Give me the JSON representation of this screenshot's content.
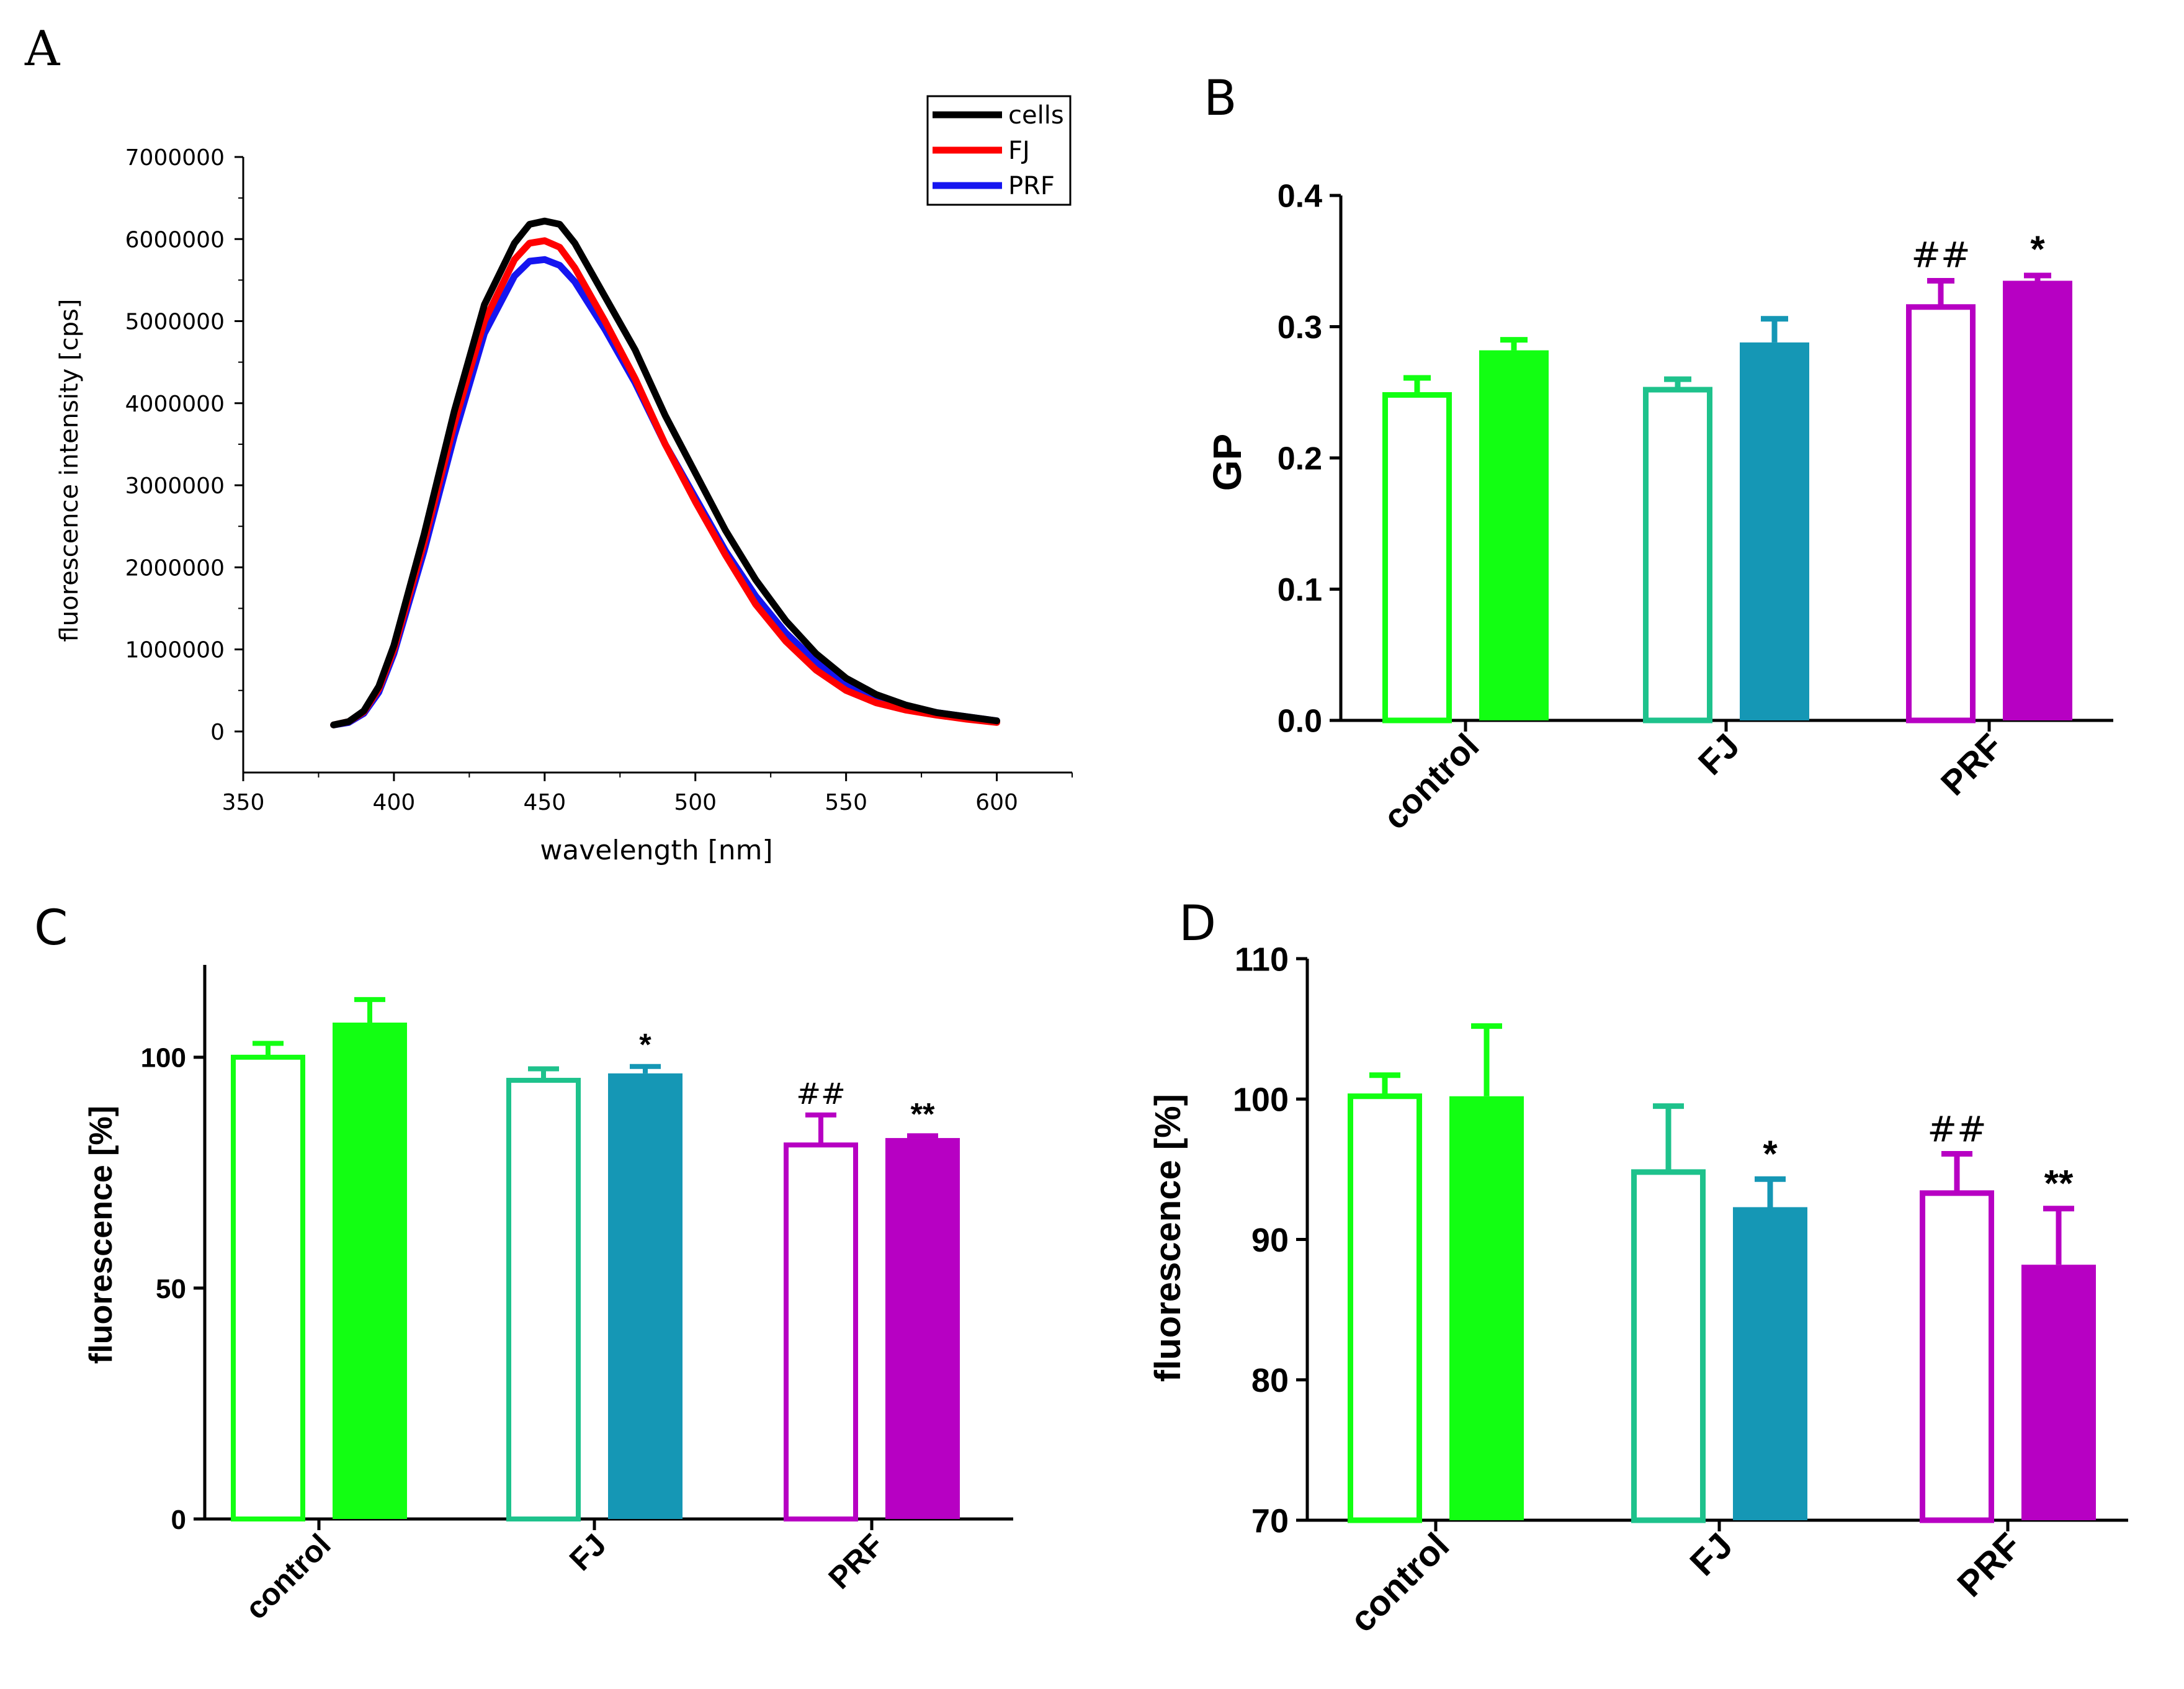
{
  "colors": {
    "black": "#000000",
    "red": "#ff0000",
    "blue": "#1515f0",
    "control": "#12ff12",
    "fj_open": "#1ec28c",
    "fj_filled": "#1597b5",
    "prf": "#b700c3"
  },
  "chart_data": [
    {
      "panel": "A",
      "type": "line",
      "xlabel": "wavelength [nm]",
      "ylabel": "fluorescence intensity [cps]",
      "xlim": [
        350,
        625
      ],
      "ylim": [
        -500000,
        7000000
      ],
      "x_ticks": [
        350,
        400,
        450,
        500,
        550,
        600
      ],
      "y_ticks": [
        0,
        1000000,
        2000000,
        3000000,
        4000000,
        5000000,
        6000000,
        7000000
      ],
      "x_tick_labels": [
        "350",
        "400",
        "450",
        "500",
        "550",
        "600"
      ],
      "y_tick_labels": [
        "0",
        "1000000",
        "2000000",
        "3000000",
        "4000000",
        "5000000",
        "6000000",
        "7000000"
      ],
      "legend": [
        "cells",
        "FJ",
        "PRF"
      ],
      "legend_position": "top-right",
      "series": [
        {
          "name": "cells",
          "color": "#000000",
          "x": [
            380,
            385,
            390,
            395,
            400,
            410,
            420,
            430,
            440,
            445,
            450,
            455,
            460,
            470,
            480,
            490,
            500,
            510,
            520,
            530,
            540,
            550,
            560,
            570,
            580,
            590,
            600
          ],
          "values": [
            80000,
            120000,
            250000,
            550000,
            1050000,
            2400000,
            3900000,
            5200000,
            5950000,
            6180000,
            6220000,
            6180000,
            5950000,
            5300000,
            4650000,
            3850000,
            3150000,
            2450000,
            1850000,
            1350000,
            950000,
            650000,
            450000,
            320000,
            230000,
            180000,
            130000
          ]
        },
        {
          "name": "FJ",
          "color": "#ff0000",
          "x": [
            380,
            385,
            390,
            395,
            400,
            410,
            420,
            430,
            440,
            445,
            450,
            455,
            460,
            470,
            480,
            490,
            500,
            510,
            520,
            530,
            540,
            550,
            560,
            570,
            580,
            590,
            600
          ],
          "values": [
            80000,
            120000,
            240000,
            520000,
            1000000,
            2300000,
            3750000,
            5000000,
            5750000,
            5950000,
            5980000,
            5900000,
            5650000,
            5000000,
            4300000,
            3500000,
            2800000,
            2150000,
            1550000,
            1100000,
            750000,
            500000,
            350000,
            260000,
            200000,
            150000,
            110000
          ]
        },
        {
          "name": "PRF",
          "color": "#1515f0",
          "x": [
            380,
            385,
            390,
            395,
            400,
            410,
            420,
            430,
            440,
            445,
            450,
            455,
            460,
            470,
            480,
            490,
            500,
            510,
            520,
            530,
            540,
            550,
            560,
            570,
            580,
            590,
            600
          ],
          "values": [
            80000,
            110000,
            220000,
            480000,
            950000,
            2200000,
            3600000,
            4850000,
            5550000,
            5730000,
            5750000,
            5680000,
            5480000,
            4900000,
            4250000,
            3500000,
            2850000,
            2200000,
            1650000,
            1200000,
            850000,
            580000,
            410000,
            300000,
            230000,
            180000,
            130000
          ]
        }
      ]
    },
    {
      "panel": "B",
      "type": "bar",
      "ylabel": "GP",
      "ylim": [
        0,
        0.4
      ],
      "y_ticks": [
        0.0,
        0.1,
        0.2,
        0.3,
        0.4
      ],
      "y_tick_labels": [
        "0.0",
        "0.1",
        "0.2",
        "0.3",
        "0.4"
      ],
      "categories": [
        "control",
        "FJ",
        "PRF"
      ],
      "series": [
        {
          "name": "open",
          "values": [
            0.248,
            0.252,
            0.315
          ],
          "errors": [
            0.013,
            0.008,
            0.02
          ]
        },
        {
          "name": "filled",
          "values": [
            0.282,
            0.288,
            0.335
          ],
          "errors": [
            0.008,
            0.018,
            0.004
          ]
        }
      ],
      "annotations": [
        {
          "category": "PRF",
          "bar": "open",
          "text": "##"
        },
        {
          "category": "PRF",
          "bar": "filled",
          "text": "*"
        }
      ]
    },
    {
      "panel": "C",
      "type": "bar",
      "ylabel": "fluorescence [%]",
      "ylim": [
        0,
        120
      ],
      "y_ticks": [
        0,
        50,
        100
      ],
      "y_tick_labels": [
        "0",
        "50",
        "100"
      ],
      "categories": [
        "control",
        "FJ",
        "PRF"
      ],
      "series": [
        {
          "name": "open",
          "values": [
            100,
            95,
            81
          ],
          "errors": [
            3,
            2.5,
            6.5
          ]
        },
        {
          "name": "filled",
          "values": [
            107.5,
            96.5,
            82.5
          ],
          "errors": [
            5,
            1.5,
            0.5
          ]
        }
      ],
      "annotations": [
        {
          "category": "FJ",
          "bar": "filled",
          "text": "*"
        },
        {
          "category": "PRF",
          "bar": "open",
          "text": "##"
        },
        {
          "category": "PRF",
          "bar": "filled",
          "text": "**"
        }
      ]
    },
    {
      "panel": "D",
      "type": "bar",
      "ylabel": "fluorescence [%]",
      "ylim": [
        70,
        110
      ],
      "y_ticks": [
        70,
        80,
        90,
        100,
        110
      ],
      "y_tick_labels": [
        "70",
        "80",
        "90",
        "100",
        "110"
      ],
      "categories": [
        "control",
        "FJ",
        "PRF"
      ],
      "series": [
        {
          "name": "open",
          "values": [
            100.2,
            94.8,
            93.3
          ],
          "errors": [
            1.5,
            4.7,
            2.8
          ]
        },
        {
          "name": "filled",
          "values": [
            100.2,
            92.3,
            88.2
          ],
          "errors": [
            5.0,
            2.0,
            4.0
          ]
        }
      ],
      "annotations": [
        {
          "category": "FJ",
          "bar": "filled",
          "text": "*"
        },
        {
          "category": "PRF",
          "bar": "open",
          "text": "##"
        },
        {
          "category": "PRF",
          "bar": "filled",
          "text": "**"
        }
      ]
    }
  ]
}
